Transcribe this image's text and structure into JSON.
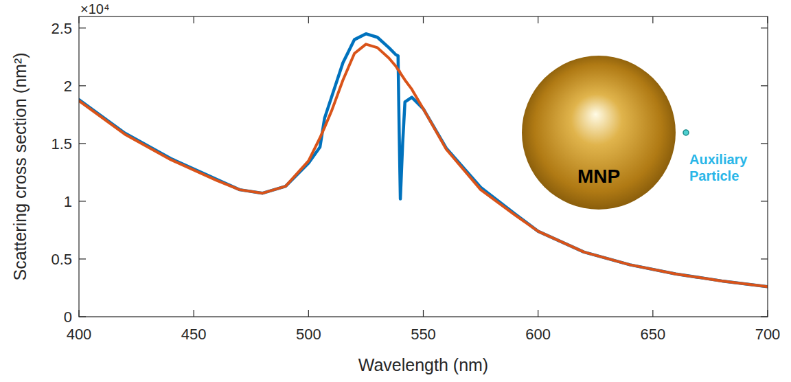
{
  "chart_data": {
    "type": "line",
    "x_label": "Wavelength (nm)",
    "y_label": "Scattering cross section (nm²)",
    "annotations": [
      "×10⁴",
      "MNP",
      "Auxiliary Particle"
    ],
    "x": [
      400,
      420,
      440,
      460,
      470,
      480,
      490,
      500,
      505,
      507,
      510,
      515,
      520,
      525,
      530,
      535,
      538,
      539,
      539.5,
      540,
      541,
      542,
      545,
      550,
      560,
      575,
      590,
      600,
      620,
      640,
      660,
      680,
      700
    ],
    "series": [
      {
        "color": "#0072bd",
        "values": [
          1.88,
          1.59,
          1.37,
          1.19,
          1.1,
          1.07,
          1.13,
          1.33,
          1.47,
          1.72,
          1.9,
          2.2,
          2.4,
          2.45,
          2.42,
          2.33,
          2.27,
          2.26,
          1.6,
          1.02,
          1.5,
          1.86,
          1.9,
          1.8,
          1.46,
          1.12,
          0.89,
          0.74,
          0.56,
          0.45,
          0.37,
          0.31,
          0.26
        ]
      },
      {
        "color": "#d95319",
        "values": [
          1.87,
          1.58,
          1.36,
          1.18,
          1.1,
          1.07,
          1.13,
          1.35,
          1.55,
          1.64,
          1.78,
          2.05,
          2.28,
          2.36,
          2.33,
          2.24,
          2.17,
          2.14,
          2.13,
          2.11,
          2.08,
          2.05,
          1.97,
          1.8,
          1.45,
          1.1,
          0.88,
          0.74,
          0.56,
          0.45,
          0.37,
          0.31,
          0.26
        ]
      }
    ],
    "xlim": [
      400,
      700
    ],
    "ylim": [
      0,
      2.6
    ],
    "xticks": [
      400,
      450,
      500,
      550,
      600,
      650,
      700
    ],
    "yticks": [
      0,
      0.5,
      1,
      1.5,
      2,
      2.5
    ],
    "grid": false
  }
}
